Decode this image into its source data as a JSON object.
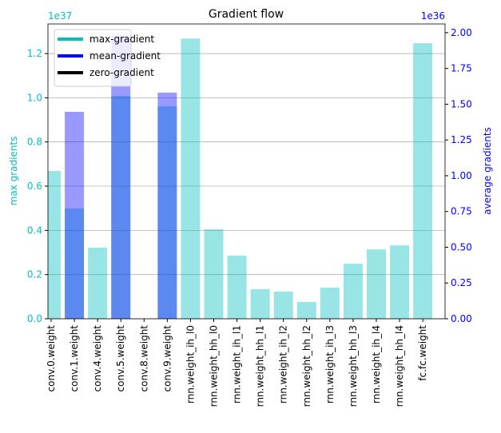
{
  "chart_data": {
    "type": "bar",
    "title": "Gradient flow",
    "ylabel": "max gradients",
    "y2label": "average gradients",
    "y_offset": "1e37",
    "y2_offset": "1e36",
    "categories": [
      "conv.0.weight",
      "conv.1.weight",
      "conv.4.weight",
      "conv.5.weight",
      "conv.8.weight",
      "conv.9.weight",
      "rnn.weight_ih_l0",
      "rnn.weight_hh_l0",
      "rnn.weight_ih_l1",
      "rnn.weight_hh_l1",
      "rnn.weight_ih_l2",
      "rnn.weight_hh_l2",
      "rnn.weight_ih_l3",
      "rnn.weight_hh_l3",
      "rnn.weight_ih_l4",
      "rnn.weight_hh_l4",
      "fc.fc.weight"
    ],
    "series": [
      {
        "name": "max-gradient",
        "color": "#00bfbf",
        "axis": "y",
        "values": [
          0.669,
          0.499,
          0.322,
          1.008,
          0,
          0.961,
          1.268,
          0.405,
          0.286,
          0.134,
          0.123,
          0.076,
          0.141,
          0.249,
          0.314,
          0.332,
          1.247
        ]
      },
      {
        "name": "mean-gradient",
        "color": "#0000ff",
        "axis": "y2",
        "values": [
          0,
          1.447,
          0,
          1.98,
          0,
          1.581,
          0,
          0,
          0,
          0,
          0,
          0,
          0,
          0,
          0,
          0,
          0
        ]
      }
    ],
    "legend_extra": [
      {
        "name": "zero-gradient",
        "color": "#000000"
      }
    ],
    "legend": "upper left",
    "ylim": [
      0,
      1.334
    ],
    "yticks": [
      {
        "value": 0,
        "label": "0.0"
      },
      0.2,
      0.4,
      0.6,
      0.8,
      {
        "value": 1,
        "label": "1.0"
      },
      1.2
    ],
    "y2lim": [
      0,
      2.061
    ],
    "y2ticks": [
      {
        "value": 0,
        "label": "0.00"
      },
      0.25,
      {
        "value": 0.5,
        "label": "0.50"
      },
      0.75,
      {
        "value": 1,
        "label": "1.00"
      },
      1.25,
      {
        "value": 1.5,
        "label": "1.50"
      },
      1.75,
      {
        "value": 2,
        "label": "2.00"
      }
    ],
    "grid": true
  }
}
